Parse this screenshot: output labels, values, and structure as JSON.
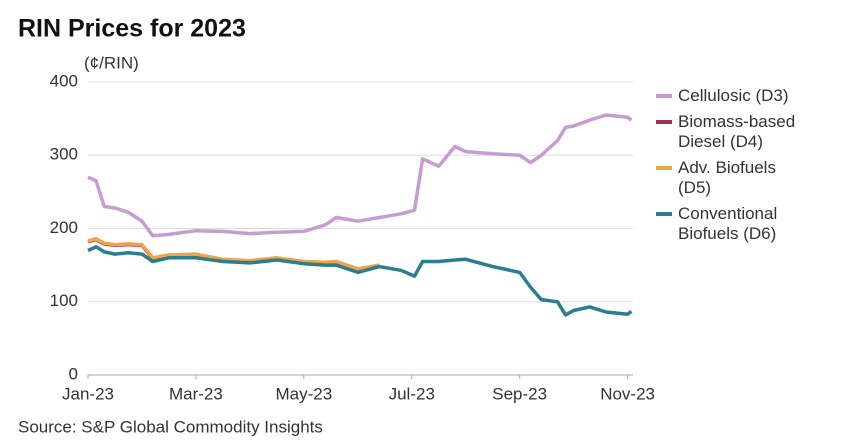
{
  "chart_data": {
    "type": "line",
    "title": "RIN Prices for 2023",
    "y_label": "(¢/RIN)",
    "source": "Source: S&P Global Commodity Insights",
    "x": [
      0,
      0.15,
      0.3,
      0.5,
      0.75,
      1.0,
      1.2,
      1.5,
      2.0,
      2.5,
      3.0,
      3.5,
      4.0,
      4.4,
      4.6,
      5.0,
      5.4,
      5.8,
      6.05,
      6.2,
      6.5,
      6.8,
      7.0,
      7.5,
      8.0,
      8.2,
      8.4,
      8.7,
      8.85,
      9.0,
      9.3,
      9.6,
      10.0,
      10.07
    ],
    "xlim": [
      0,
      10.1
    ],
    "xticks": [
      {
        "value": 0,
        "label": "Jan-23"
      },
      {
        "value": 2,
        "label": "Mar-23"
      },
      {
        "value": 4,
        "label": "May-23"
      },
      {
        "value": 6,
        "label": "Jul-23"
      },
      {
        "value": 8,
        "label": "Sep-23"
      },
      {
        "value": 10,
        "label": "Nov-23"
      }
    ],
    "ylim": [
      0,
      400
    ],
    "yticks": [
      0,
      100,
      200,
      300,
      400
    ],
    "grid": true,
    "legend": "right",
    "series": [
      {
        "name": "Cellulosic (D3)",
        "color": "#c59dd1",
        "values": [
          270,
          265,
          230,
          228,
          222,
          210,
          190,
          192,
          197,
          196,
          193,
          195,
          196,
          205,
          215,
          210,
          215,
          220,
          225,
          295,
          285,
          312,
          305,
          302,
          300,
          290,
          300,
          320,
          338,
          340,
          348,
          355,
          352,
          348
        ]
      },
      {
        "name": "Biomass-based Diesel (D4)",
        "color": "#a0335c",
        "values": [
          182,
          185,
          179,
          177,
          178,
          177,
          159,
          163,
          164,
          157,
          155,
          159,
          154,
          153,
          154,
          144,
          149,
          null,
          null,
          null,
          null,
          null,
          null,
          null,
          null,
          null,
          null,
          null,
          null,
          null,
          null,
          null,
          null,
          null
        ]
      },
      {
        "name": "Adv. Biofuels (D5)",
        "color": "#f0a347",
        "values": [
          183,
          186,
          180,
          178,
          179,
          178,
          160,
          164,
          165,
          158,
          156,
          160,
          155,
          154,
          155,
          145,
          150,
          null,
          null,
          null,
          null,
          null,
          null,
          null,
          null,
          null,
          null,
          null,
          null,
          null,
          null,
          null,
          null,
          null
        ]
      },
      {
        "name": "Conventional Biofuels (D6)",
        "color": "#2a7f8f",
        "values": [
          170,
          175,
          168,
          165,
          167,
          165,
          155,
          160,
          160,
          155,
          153,
          157,
          152,
          150,
          150,
          140,
          148,
          143,
          135,
          155,
          155,
          157,
          158,
          148,
          140,
          120,
          103,
          100,
          82,
          88,
          93,
          86,
          83,
          87
        ]
      }
    ]
  }
}
